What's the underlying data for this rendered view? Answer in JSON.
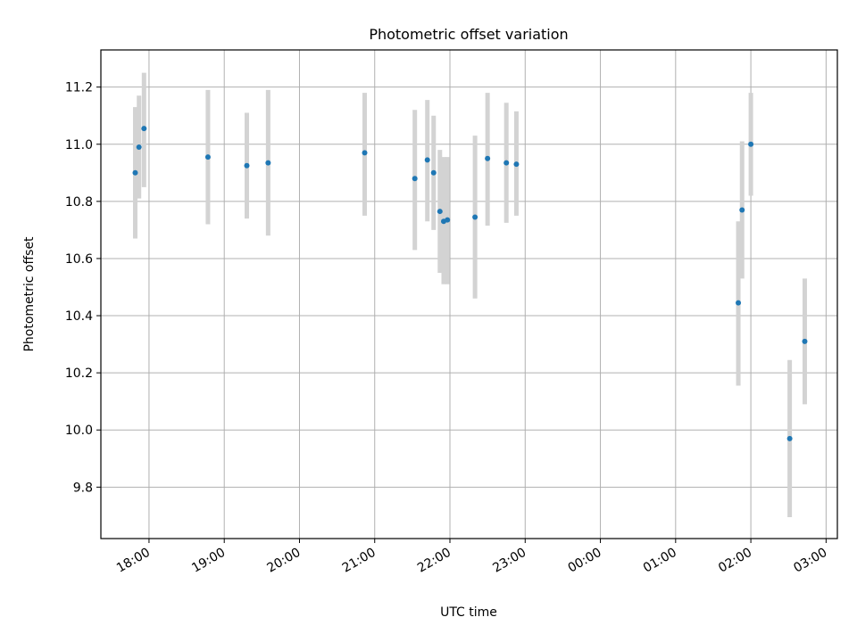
{
  "chart_data": {
    "type": "scatter",
    "title": "Photometric offset variation",
    "xlabel": "UTC time",
    "ylabel": "Photometric offset",
    "x_tick_labels": [
      "18:00",
      "19:00",
      "20:00",
      "21:00",
      "22:00",
      "23:00",
      "00:00",
      "01:00",
      "02:00",
      "03:00"
    ],
    "x_ticks_hours": [
      18,
      19,
      20,
      21,
      22,
      23,
      24,
      25,
      26,
      27
    ],
    "y_ticks": [
      9.8,
      10.0,
      10.2,
      10.4,
      10.6,
      10.8,
      11.0,
      11.2
    ],
    "xlim_hours": [
      17.36,
      27.15
    ],
    "ylim": [
      9.62,
      11.33
    ],
    "grid": true,
    "colors": {
      "point": "#1f77b4",
      "errorbar": "#d3d3d3",
      "grid": "#b0b0b0"
    },
    "points": [
      {
        "time": "17:49",
        "y": 10.9,
        "lo": 10.67,
        "hi": 11.13
      },
      {
        "time": "17:52",
        "y": 10.99,
        "lo": 10.81,
        "hi": 11.17
      },
      {
        "time": "17:56",
        "y": 11.055,
        "lo": 10.85,
        "hi": 11.25
      },
      {
        "time": "18:47",
        "y": 10.955,
        "lo": 10.72,
        "hi": 11.19
      },
      {
        "time": "19:18",
        "y": 10.925,
        "lo": 10.74,
        "hi": 11.11
      },
      {
        "time": "19:35",
        "y": 10.935,
        "lo": 10.68,
        "hi": 11.19
      },
      {
        "time": "20:52",
        "y": 10.97,
        "lo": 10.75,
        "hi": 11.18
      },
      {
        "time": "21:32",
        "y": 10.88,
        "lo": 10.63,
        "hi": 11.12
      },
      {
        "time": "21:42",
        "y": 10.945,
        "lo": 10.73,
        "hi": 11.155
      },
      {
        "time": "21:47",
        "y": 10.9,
        "lo": 10.7,
        "hi": 11.1
      },
      {
        "time": "21:52",
        "y": 10.765,
        "lo": 10.55,
        "hi": 10.98
      },
      {
        "time": "21:55",
        "y": 10.73,
        "lo": 10.51,
        "hi": 10.955
      },
      {
        "time": "21:58",
        "y": 10.735,
        "lo": 10.51,
        "hi": 10.955
      },
      {
        "time": "22:20",
        "y": 10.745,
        "lo": 10.46,
        "hi": 11.03
      },
      {
        "time": "22:30",
        "y": 10.95,
        "lo": 10.715,
        "hi": 11.18
      },
      {
        "time": "22:45",
        "y": 10.935,
        "lo": 10.725,
        "hi": 11.145
      },
      {
        "time": "22:53",
        "y": 10.93,
        "lo": 10.75,
        "hi": 11.115
      },
      {
        "time": "01:50",
        "y": 10.445,
        "lo": 10.155,
        "hi": 10.73
      },
      {
        "time": "01:53",
        "y": 10.77,
        "lo": 10.53,
        "hi": 11.01
      },
      {
        "time": "02:00",
        "y": 11.0,
        "lo": 10.82,
        "hi": 11.18
      },
      {
        "time": "02:31",
        "y": 9.97,
        "lo": 9.695,
        "hi": 10.245
      },
      {
        "time": "02:43",
        "y": 10.31,
        "lo": 10.09,
        "hi": 10.53
      }
    ]
  }
}
